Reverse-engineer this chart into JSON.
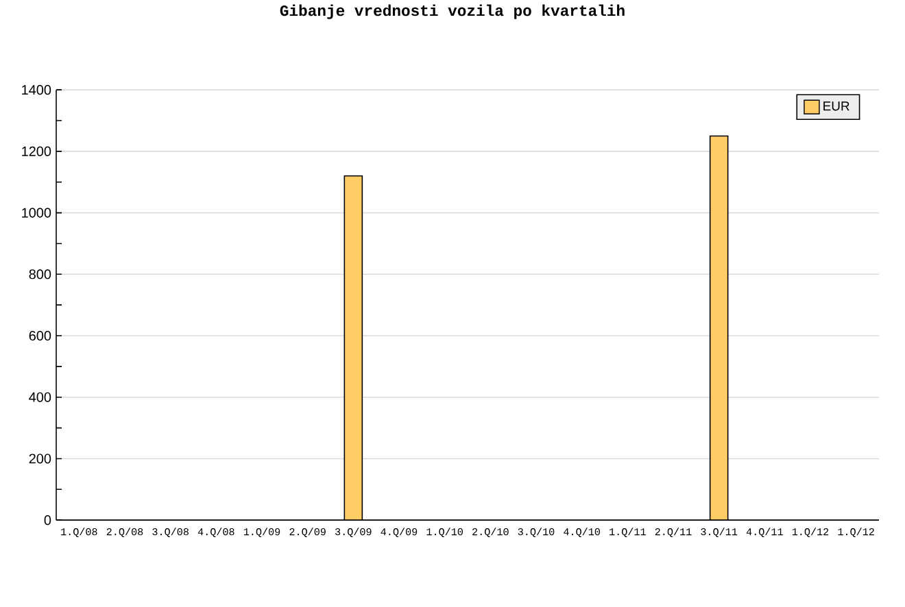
{
  "chart_data": {
    "type": "bar",
    "title": "Gibanje vrednosti vozila po kvartalih",
    "categories": [
      "1.Q/08",
      "2.Q/08",
      "3.Q/08",
      "4.Q/08",
      "1.Q/09",
      "2.Q/09",
      "3.Q/09",
      "4.Q/09",
      "1.Q/10",
      "2.Q/10",
      "3.Q/10",
      "4.Q/10",
      "1.Q/11",
      "2.Q/11",
      "3.Q/11",
      "4.Q/11",
      "1.Q/12",
      "1.Q/12"
    ],
    "series": [
      {
        "name": "EUR",
        "color": "#ffcc66",
        "values": [
          null,
          null,
          null,
          null,
          null,
          null,
          1120,
          null,
          null,
          null,
          null,
          null,
          null,
          null,
          1250,
          null,
          null,
          null
        ]
      }
    ],
    "ylim": [
      0,
      1400
    ],
    "yticks": [
      0,
      {
        "value": 100,
        "label": null
      },
      200,
      {
        "value": 300,
        "label": null
      },
      400,
      {
        "value": 500,
        "label": null
      },
      600,
      {
        "value": 700,
        "label": null
      },
      800,
      {
        "value": 900,
        "label": null
      },
      1000,
      {
        "value": 1100,
        "label": null
      },
      1200,
      {
        "value": 1300,
        "label": null
      },
      1400
    ],
    "grid": "y",
    "legend": "top right"
  }
}
